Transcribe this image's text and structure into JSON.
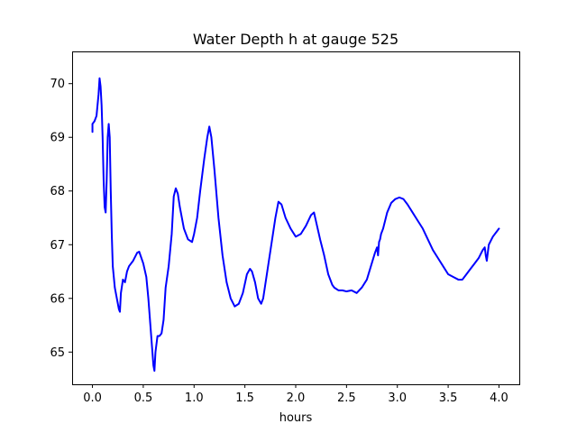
{
  "chart_data": {
    "type": "line",
    "title": "Water Depth h at gauge 525",
    "xlabel": "hours",
    "ylabel": "",
    "xlim": [
      -0.2,
      4.2
    ],
    "ylim": [
      64.4,
      70.6
    ],
    "xticks": [
      0.0,
      0.5,
      1.0,
      1.5,
      2.0,
      2.5,
      3.0,
      3.5,
      4.0
    ],
    "xtick_labels": [
      "0.0",
      "0.5",
      "1.0",
      "1.5",
      "2.0",
      "2.5",
      "3.0",
      "3.5",
      "4.0"
    ],
    "yticks": [
      65,
      66,
      67,
      68,
      69,
      70
    ],
    "ytick_labels": [
      "65",
      "66",
      "67",
      "68",
      "69",
      "70"
    ],
    "grid": false,
    "series": [
      {
        "color": "#0000ff",
        "x": [
          0.0,
          0.0,
          0.02,
          0.04,
          0.06,
          0.07,
          0.08,
          0.09,
          0.1,
          0.11,
          0.12,
          0.13,
          0.14,
          0.15,
          0.16,
          0.17,
          0.18,
          0.19,
          0.2,
          0.22,
          0.24,
          0.26,
          0.27,
          0.28,
          0.3,
          0.32,
          0.34,
          0.36,
          0.4,
          0.44,
          0.46,
          0.5,
          0.53,
          0.55,
          0.57,
          0.59,
          0.6,
          0.61,
          0.62,
          0.64,
          0.66,
          0.68,
          0.7,
          0.72,
          0.75,
          0.78,
          0.8,
          0.82,
          0.84,
          0.86,
          0.9,
          0.94,
          0.98,
          1.0,
          1.03,
          1.06,
          1.1,
          1.13,
          1.15,
          1.17,
          1.2,
          1.24,
          1.28,
          1.32,
          1.36,
          1.4,
          1.44,
          1.48,
          1.52,
          1.55,
          1.57,
          1.6,
          1.63,
          1.66,
          1.68,
          1.72,
          1.76,
          1.8,
          1.83,
          1.86,
          1.9,
          1.95,
          2.0,
          2.05,
          2.1,
          2.15,
          2.18,
          2.21,
          2.24,
          2.28,
          2.32,
          2.36,
          2.38,
          2.42,
          2.46,
          2.5,
          2.55,
          2.6,
          2.65,
          2.7,
          2.74,
          2.78,
          2.8,
          2.81,
          2.82,
          2.83,
          2.84,
          2.86,
          2.88,
          2.9,
          2.94,
          2.98,
          3.02,
          3.06,
          3.1,
          3.15,
          3.2,
          3.25,
          3.3,
          3.35,
          3.4,
          3.45,
          3.5,
          3.55,
          3.6,
          3.64,
          3.68,
          3.72,
          3.76,
          3.8,
          3.84,
          3.86,
          3.87,
          3.88,
          3.9,
          3.94,
          3.98,
          4.0
        ],
        "y": [
          69.1,
          69.25,
          69.3,
          69.4,
          69.8,
          70.1,
          69.95,
          69.6,
          69.0,
          68.2,
          67.7,
          67.6,
          68.2,
          69.0,
          69.25,
          69.0,
          68.0,
          67.2,
          66.6,
          66.2,
          66.0,
          65.8,
          65.75,
          66.1,
          66.35,
          66.3,
          66.5,
          66.6,
          66.7,
          66.85,
          66.87,
          66.65,
          66.4,
          66.0,
          65.5,
          65.0,
          64.75,
          64.65,
          65.0,
          65.3,
          65.3,
          65.35,
          65.6,
          66.2,
          66.6,
          67.2,
          67.9,
          68.05,
          67.95,
          67.7,
          67.3,
          67.1,
          67.05,
          67.2,
          67.5,
          68.0,
          68.6,
          69.0,
          69.2,
          69.0,
          68.4,
          67.5,
          66.8,
          66.3,
          66.0,
          65.85,
          65.9,
          66.1,
          66.45,
          66.55,
          66.5,
          66.3,
          66.0,
          65.9,
          66.0,
          66.5,
          67.0,
          67.5,
          67.8,
          67.75,
          67.5,
          67.3,
          67.15,
          67.2,
          67.35,
          67.55,
          67.6,
          67.35,
          67.1,
          66.8,
          66.45,
          66.25,
          66.2,
          66.15,
          66.15,
          66.13,
          66.15,
          66.1,
          66.2,
          66.35,
          66.6,
          66.85,
          66.95,
          66.8,
          67.05,
          67.1,
          67.2,
          67.3,
          67.45,
          67.6,
          67.78,
          67.85,
          67.88,
          67.85,
          67.75,
          67.6,
          67.45,
          67.3,
          67.1,
          66.9,
          66.75,
          66.6,
          66.45,
          66.4,
          66.35,
          66.35,
          66.45,
          66.55,
          66.65,
          66.75,
          66.9,
          66.95,
          66.8,
          66.7,
          67.0,
          67.15,
          67.25,
          67.3
        ]
      }
    ]
  }
}
